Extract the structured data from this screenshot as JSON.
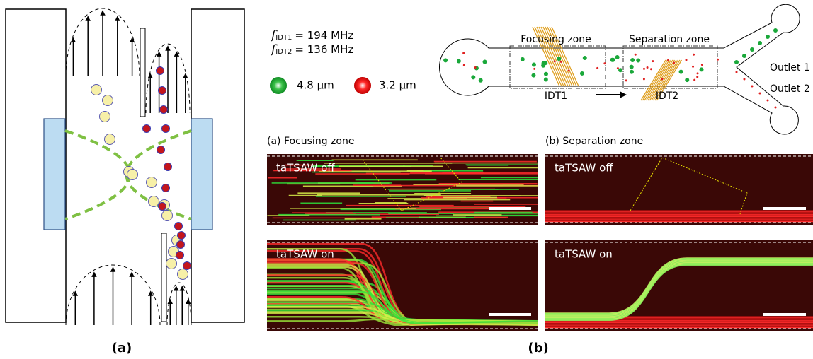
{
  "figure": {
    "panel_a": {
      "caption": "(a)"
    },
    "panel_b": {
      "caption": "(b)",
      "frequencies": [
        {
          "symbol": "f",
          "subscript": "IDT1",
          "text": "= 194 MHz"
        },
        {
          "symbol": "f",
          "subscript": "IDT2",
          "text": "= 136 MHz"
        }
      ],
      "legend": [
        {
          "label": "4.8 μm"
        },
        {
          "label": "3.2 μm"
        }
      ],
      "channel": {
        "zones": [
          "Focusing zone",
          "Separation zone"
        ],
        "idts": [
          "IDT1",
          "IDT2"
        ],
        "outlets": [
          "Outlet 1",
          "Outlet 2"
        ]
      },
      "images": [
        {
          "title": "(a) Focusing zone",
          "frames": [
            "taTSAW off",
            "taTSAW on"
          ]
        },
        {
          "title": "(b) Separation zone",
          "frames": [
            "taTSAW off",
            "taTSAW on"
          ]
        }
      ]
    }
  }
}
